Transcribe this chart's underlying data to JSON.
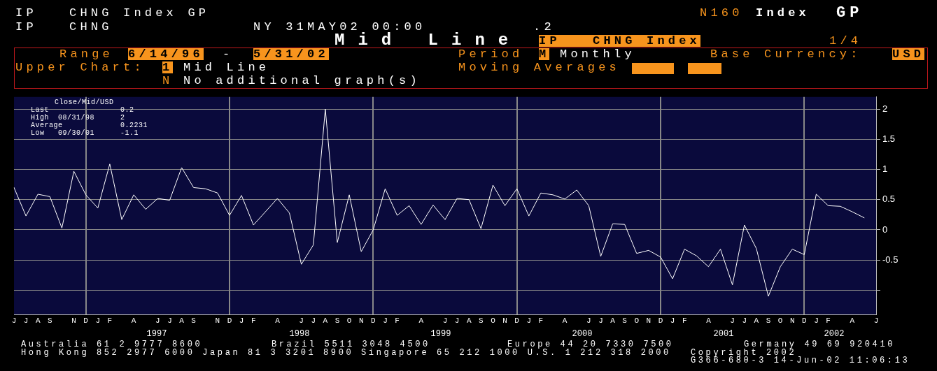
{
  "chart_data": {
    "type": "line",
    "title": "Mid Line",
    "categories": [
      "J",
      "J",
      "A",
      "S",
      null,
      "N",
      "D",
      "J",
      "F",
      null,
      "A",
      null,
      "J",
      "J",
      "A",
      "S",
      null,
      "N",
      "D",
      "J",
      "F",
      null,
      "A",
      null,
      "J",
      "J",
      "A",
      "S",
      "O",
      "N",
      "D",
      "J",
      "F",
      null,
      "A",
      null,
      "J",
      "J",
      "A",
      "S",
      "O",
      "N",
      "D",
      "J",
      "F",
      null,
      "A",
      null,
      "J",
      "J",
      "A",
      "S",
      "O",
      "N",
      "D",
      "J",
      "F",
      null,
      "A",
      null,
      "J",
      "J",
      "A",
      "S",
      "O",
      "N",
      "D",
      "J",
      "F",
      null,
      "A",
      null,
      "J"
    ],
    "values": [
      0.7,
      0.23,
      0.59,
      0.55,
      0.03,
      0.97,
      0.58,
      0.36,
      1.09,
      0.17,
      0.58,
      0.34,
      0.52,
      0.49,
      1.03,
      0.7,
      0.68,
      0.61,
      0.24,
      0.57,
      0.08,
      0.3,
      0.52,
      0.28,
      -0.57,
      -0.25,
      2,
      -0.21,
      0.58,
      -0.36,
      0,
      0.68,
      0.24,
      0.4,
      0.09,
      0.41,
      0.17,
      0.52,
      0.5,
      0.02,
      0.74,
      0.4,
      0.68,
      0.23,
      0.61,
      0.58,
      0.51,
      0.66,
      0.4,
      -0.44,
      0.1,
      0.09,
      -0.39,
      -0.34,
      -0.45,
      -0.81,
      -0.32,
      -0.43,
      -0.61,
      -0.32,
      -0.91,
      0.08,
      -0.31,
      -1.1,
      -0.61,
      -0.32,
      -0.41,
      0.59,
      0.4,
      0.39,
      0.3,
      0.2,
      null
    ],
    "color": "#ffffff",
    "ylim": [
      -1.4,
      2.2
    ],
    "yticks": [
      {
        "value": -1,
        "label": null
      },
      -0.5,
      0,
      0.5,
      1,
      1.5,
      2
    ],
    "grid": true,
    "annotations": [
      "IP   CHNG Index GP",
      "N160",
      "Index",
      "GP",
      "IP   CHNG",
      "NY 31MAY02 00:00",
      ".2",
      "IP   CHNG Index",
      "1/4",
      "Range",
      "6/14/96",
      "-",
      "5/31/02",
      "Period",
      "M",
      "Monthly",
      "Base Currency:",
      "USD",
      "Upper Chart:",
      "1",
      "Mid Line",
      "Moving Averages",
      "N",
      "No additional graph(s)",
      "Close/Mid/USD",
      "Last",
      "0.2",
      "High  08/31/98",
      "2",
      "Average",
      "0.2231",
      "Low   09/30/01",
      "-1.1",
      "1997",
      "1998",
      "1999",
      "2000",
      "2001",
      "2002",
      "Australia 61 2 9777 8600",
      "Brazil 5511 3048 4500",
      "Europe 44 20 7330 7500",
      "Germany 49 69 920410",
      "Hong Kong 852 2977 6000 Japan 81 3 3201 8900 Singapore 65 212 1000 U.S. 1 212 318 2000",
      "Copyright 2002",
      "G366-680-3 14-Jun-02 11:06:13"
    ]
  }
}
